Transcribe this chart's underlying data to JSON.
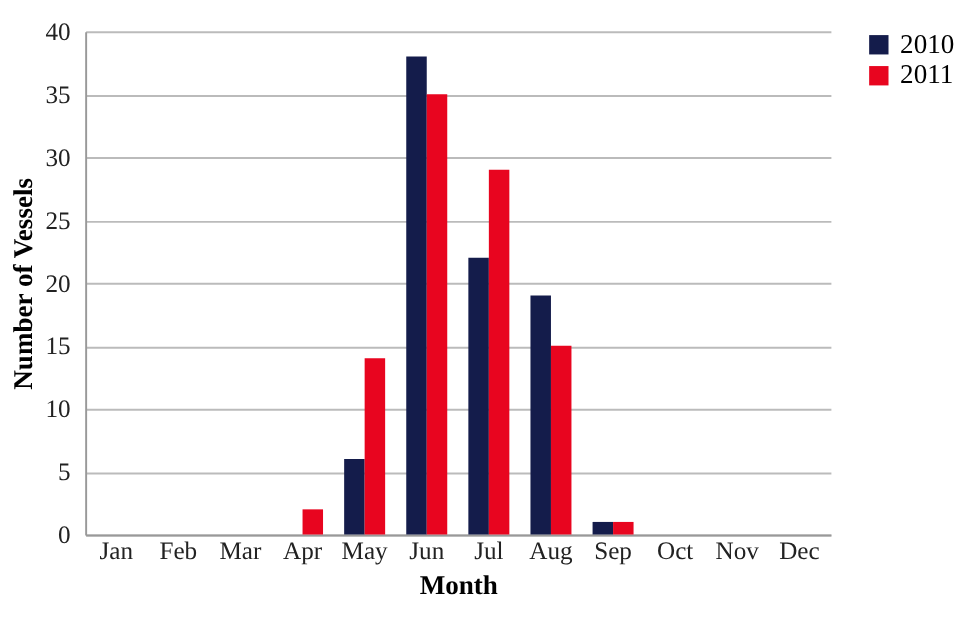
{
  "chart_data": {
    "type": "bar",
    "xlabel": "Month",
    "ylabel": "Number of Vessels",
    "categories": [
      "Jan",
      "Feb",
      "Mar",
      "Apr",
      "May",
      "Jun",
      "Jul",
      "Aug",
      "Sep",
      "Oct",
      "Nov",
      "Dec"
    ],
    "series": [
      {
        "name": "2010",
        "color": "#141c4b",
        "values": [
          0,
          0,
          0,
          0,
          6,
          38,
          22,
          19,
          1,
          0,
          0,
          0
        ]
      },
      {
        "name": "2011",
        "color": "#e8051f",
        "values": [
          0,
          0,
          0,
          2,
          14,
          35,
          29,
          15,
          1,
          0,
          0,
          0
        ]
      }
    ],
    "ylim": [
      0,
      40
    ],
    "yticks": [
      0,
      5,
      10,
      15,
      20,
      25,
      30,
      35,
      40
    ],
    "grid": "y",
    "legend": "right"
  }
}
